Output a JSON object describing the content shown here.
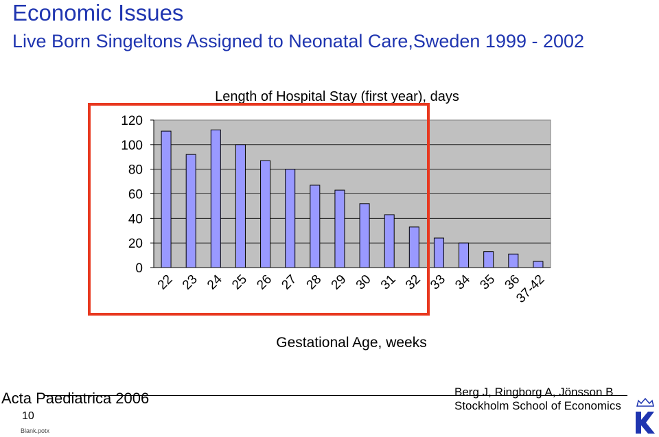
{
  "slide": {
    "title": "Economic Issues",
    "subtitle": "Live Born Singeltons Assigned to Neonatal Care,Sweden 1999 - 2002",
    "footer_left": "Acta Paediatrica 2006",
    "slide_number": "10",
    "template_name": "Blank.potx",
    "authors": "Berg J, Ringborg A, Jönsson B",
    "school": "Stockholm School of Economics",
    "logo_icon": "crown-k-logo-icon",
    "highlight_color": "#e8381f",
    "text_color": "#1f35b0"
  },
  "chart_data": {
    "type": "bar",
    "title": "Length of  Hospital Stay (first year), days",
    "xlabel": "Gestational Age, weeks",
    "ylabel": "",
    "categories": [
      "22",
      "23",
      "24",
      "25",
      "26",
      "27",
      "28",
      "29",
      "30",
      "31",
      "32",
      "33",
      "34",
      "35",
      "36",
      "37-42"
    ],
    "values": [
      111,
      92,
      112,
      100,
      87,
      80,
      67,
      63,
      52,
      43,
      33,
      24,
      20,
      13,
      11,
      5
    ],
    "ylim": [
      0,
      120
    ],
    "yticks": [
      0,
      20,
      40,
      60,
      80,
      100,
      120
    ],
    "grid": true,
    "legend": "none",
    "bar_color": "#9999ff",
    "plot_background": "#c0c0c0"
  }
}
